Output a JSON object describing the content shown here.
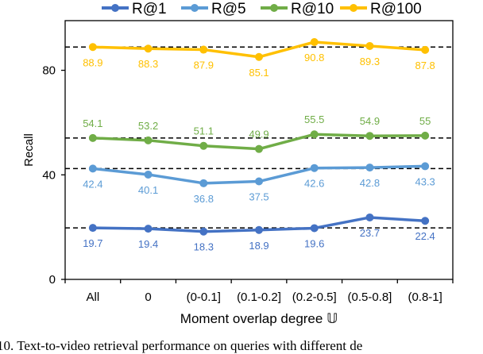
{
  "chart_data": {
    "type": "line",
    "categories": [
      "All",
      "0",
      "(0-0.1]",
      "(0.1-0.2]",
      "(0.2-0.5]",
      "(0.5-0.8]",
      "(0.8-1]"
    ],
    "series": [
      {
        "name": "R@1",
        "color": "#4472C4",
        "values": [
          19.7,
          19.4,
          18.3,
          18.9,
          19.6,
          23.7,
          22.4
        ],
        "labels": [
          "19.7",
          "19.4",
          "18.3",
          "18.9",
          "19.6",
          "23.7",
          "22.4"
        ]
      },
      {
        "name": "R@5",
        "color": "#5B9BD5",
        "values": [
          42.4,
          40.1,
          36.8,
          37.5,
          42.6,
          42.8,
          43.3
        ],
        "labels": [
          "42.4",
          "40.1",
          "36.8",
          "37.5",
          "42.6",
          "42.8",
          "43.3"
        ]
      },
      {
        "name": "R@10",
        "color": "#70AD47",
        "values": [
          54.1,
          53.2,
          51.1,
          49.9,
          55.5,
          54.9,
          55
        ],
        "labels": [
          "54.1",
          "53.2",
          "51.1",
          "49.9",
          "55.5",
          "54.9",
          "55"
        ]
      },
      {
        "name": "R@100",
        "color": "#FFC000",
        "values": [
          88.9,
          88.3,
          87.9,
          85.1,
          90.8,
          89.3,
          87.8
        ],
        "labels": [
          "88.9",
          "88.3",
          "87.9",
          "85.1",
          "90.8",
          "89.3",
          "87.8"
        ]
      }
    ],
    "reference_lines": [
      88.9,
      54.1,
      42.4,
      19.7
    ],
    "xlabel": "Moment overlap degree 𝕌",
    "ylabel": "Recall",
    "ylim": [
      0,
      99
    ],
    "yticks": [
      "0",
      "40",
      "80"
    ],
    "grid": false,
    "legend": "top"
  },
  "caption": "10.  Text-to-video retrieval performance on queries with different de"
}
